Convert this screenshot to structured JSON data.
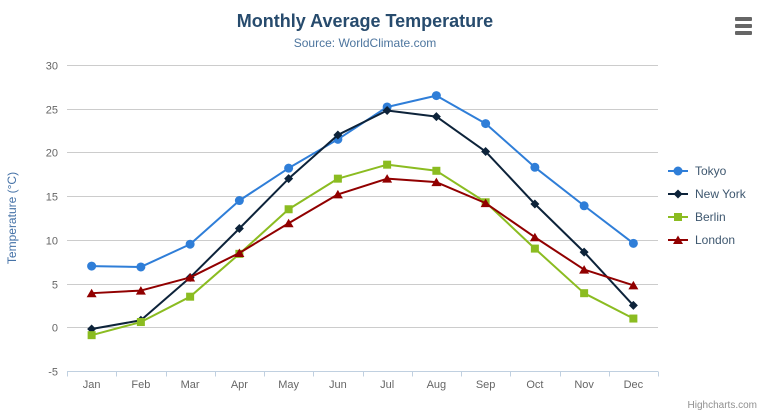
{
  "header": {
    "title": "Monthly Average Temperature",
    "subtitle": "Source: WorldClimate.com"
  },
  "icons": {
    "export_menu": "hamburger-menu-icon"
  },
  "credit_label": "Highcharts.com",
  "chart_data": {
    "type": "line",
    "title": "Monthly Average Temperature",
    "subtitle": "Source: WorldClimate.com",
    "xlabel": "",
    "ylabel": "Temperature (°C)",
    "ylim": [
      -5,
      30
    ],
    "ytick_step": 5,
    "grid": true,
    "legend_position": "right",
    "categories": [
      "Jan",
      "Feb",
      "Mar",
      "Apr",
      "May",
      "Jun",
      "Jul",
      "Aug",
      "Sep",
      "Oct",
      "Nov",
      "Dec"
    ],
    "series": [
      {
        "name": "Tokyo",
        "color": "#2f7ed8",
        "marker": "circle",
        "values": [
          7.0,
          6.9,
          9.5,
          14.5,
          18.2,
          21.5,
          25.2,
          26.5,
          23.3,
          18.3,
          13.9,
          9.6
        ]
      },
      {
        "name": "New York",
        "color": "#0d233a",
        "marker": "diamond",
        "values": [
          -0.2,
          0.8,
          5.7,
          11.3,
          17.0,
          22.0,
          24.8,
          24.1,
          20.1,
          14.1,
          8.6,
          2.5
        ]
      },
      {
        "name": "Berlin",
        "color": "#8bbc21",
        "marker": "square",
        "values": [
          -0.9,
          0.6,
          3.5,
          8.4,
          13.5,
          17.0,
          18.6,
          17.9,
          14.3,
          9.0,
          3.9,
          1.0
        ]
      },
      {
        "name": "London",
        "color": "#910000",
        "marker": "triangle",
        "values": [
          3.9,
          4.2,
          5.7,
          8.5,
          11.9,
          15.2,
          17.0,
          16.6,
          14.2,
          10.3,
          6.6,
          4.8
        ]
      }
    ],
    "axis_colors": {
      "grid_line": "#cccccc",
      "axis_line": "#c0d0e0",
      "tick_label": "#666666",
      "axis_title": "#4572a7"
    }
  }
}
